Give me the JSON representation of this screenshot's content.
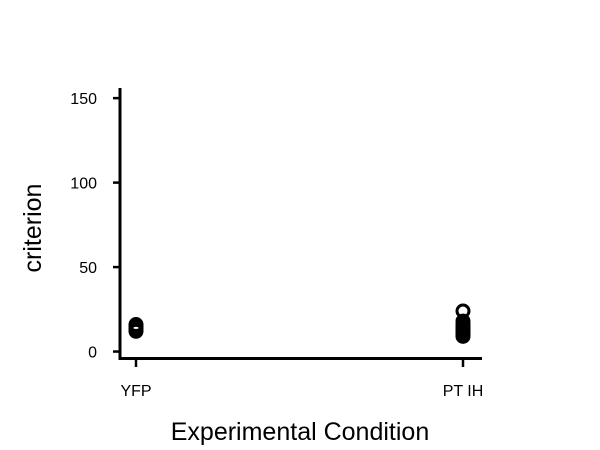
{
  "chart_data": {
    "type": "scatter",
    "title": "",
    "xlabel": "Experimental Condition",
    "ylabel": "criterion",
    "categories": [
      "YFP",
      "PT IH"
    ],
    "ylim": [
      -5,
      156
    ],
    "yticks": [
      0,
      50,
      100,
      150
    ],
    "grid": false,
    "legend": "none",
    "series": [
      {
        "category": "YFP",
        "values": [
          12,
          13,
          14,
          15,
          16
        ]
      },
      {
        "category": "PT IH",
        "values": [
          9,
          10,
          11,
          12,
          13,
          14,
          15,
          16,
          18,
          24
        ]
      }
    ],
    "marker_color": "#000000"
  }
}
